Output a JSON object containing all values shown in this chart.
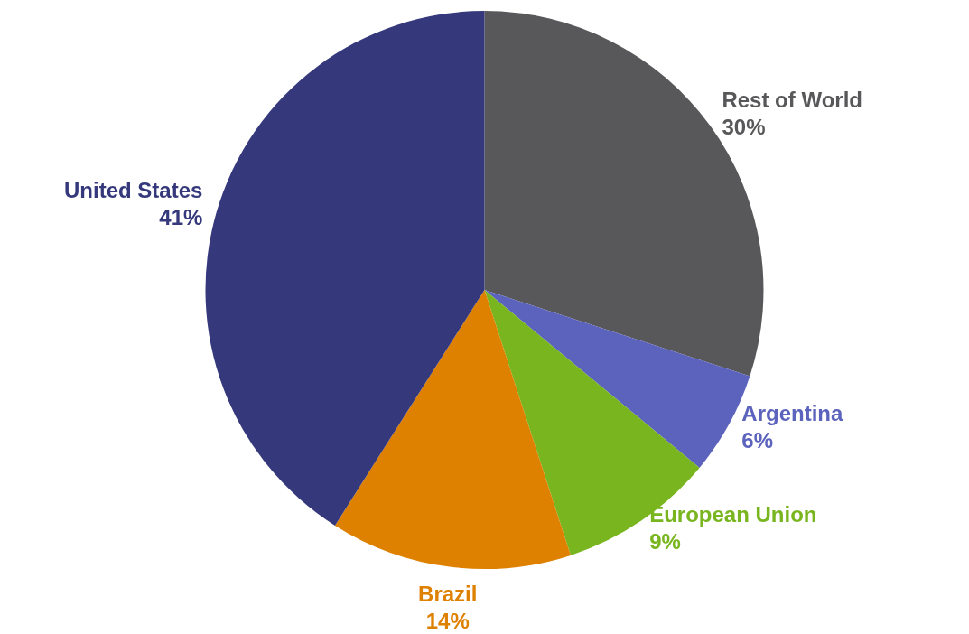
{
  "chart_data": {
    "type": "pie",
    "categories": [
      "Rest of World",
      "Argentina",
      "European Union",
      "Brazil",
      "United States"
    ],
    "values": [
      30,
      6,
      9,
      14,
      41
    ],
    "value_labels": [
      "30%",
      "6%",
      "9%",
      "14%",
      "41%"
    ],
    "colors": [
      "#58585a",
      "#5c63bd",
      "#79b51e",
      "#de8000",
      "#35397c"
    ],
    "legend": false
  }
}
